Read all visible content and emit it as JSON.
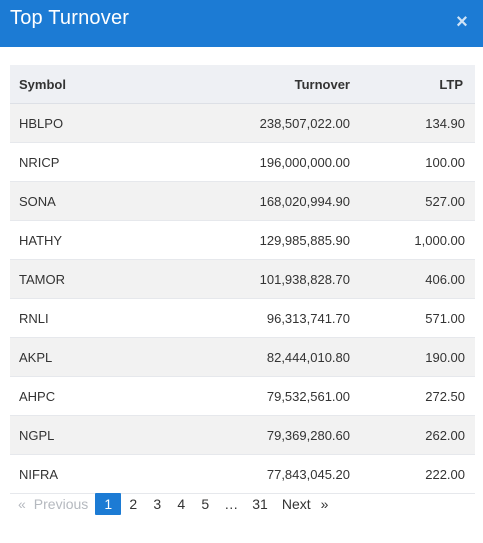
{
  "dialog": {
    "title": "Top Turnover",
    "close_icon": "×"
  },
  "table": {
    "columns": [
      "Symbol",
      "Turnover",
      "LTP"
    ],
    "rows": [
      [
        "HBLPO",
        "238,507,022.00",
        "134.90"
      ],
      [
        "NRICP",
        "196,000,000.00",
        "100.00"
      ],
      [
        "SONA",
        "168,020,994.90",
        "527.00"
      ],
      [
        "HATHY",
        "129,985,885.90",
        "1,000.00"
      ],
      [
        "TAMOR",
        "101,938,828.70",
        "406.00"
      ],
      [
        "RNLI",
        "96,313,741.70",
        "571.00"
      ],
      [
        "AKPL",
        "82,444,010.80",
        "190.00"
      ],
      [
        "AHPC",
        "79,532,561.00",
        "272.50"
      ],
      [
        "NGPL",
        "79,369,280.60",
        "262.00"
      ],
      [
        "NIFRA",
        "77,843,045.20",
        "222.00"
      ]
    ]
  },
  "pagination": {
    "prev_arrow": "«",
    "prev_label": "Previous",
    "pages": [
      "1",
      "2",
      "3",
      "4",
      "5"
    ],
    "active_page": "1",
    "ellipsis": "…",
    "last_page": "31",
    "next_label": "Next",
    "next_arrow": "»"
  },
  "colors": {
    "accent": "#1c7bd4",
    "header_row": "#eef0f4",
    "striped_row": "#f2f2f2"
  }
}
